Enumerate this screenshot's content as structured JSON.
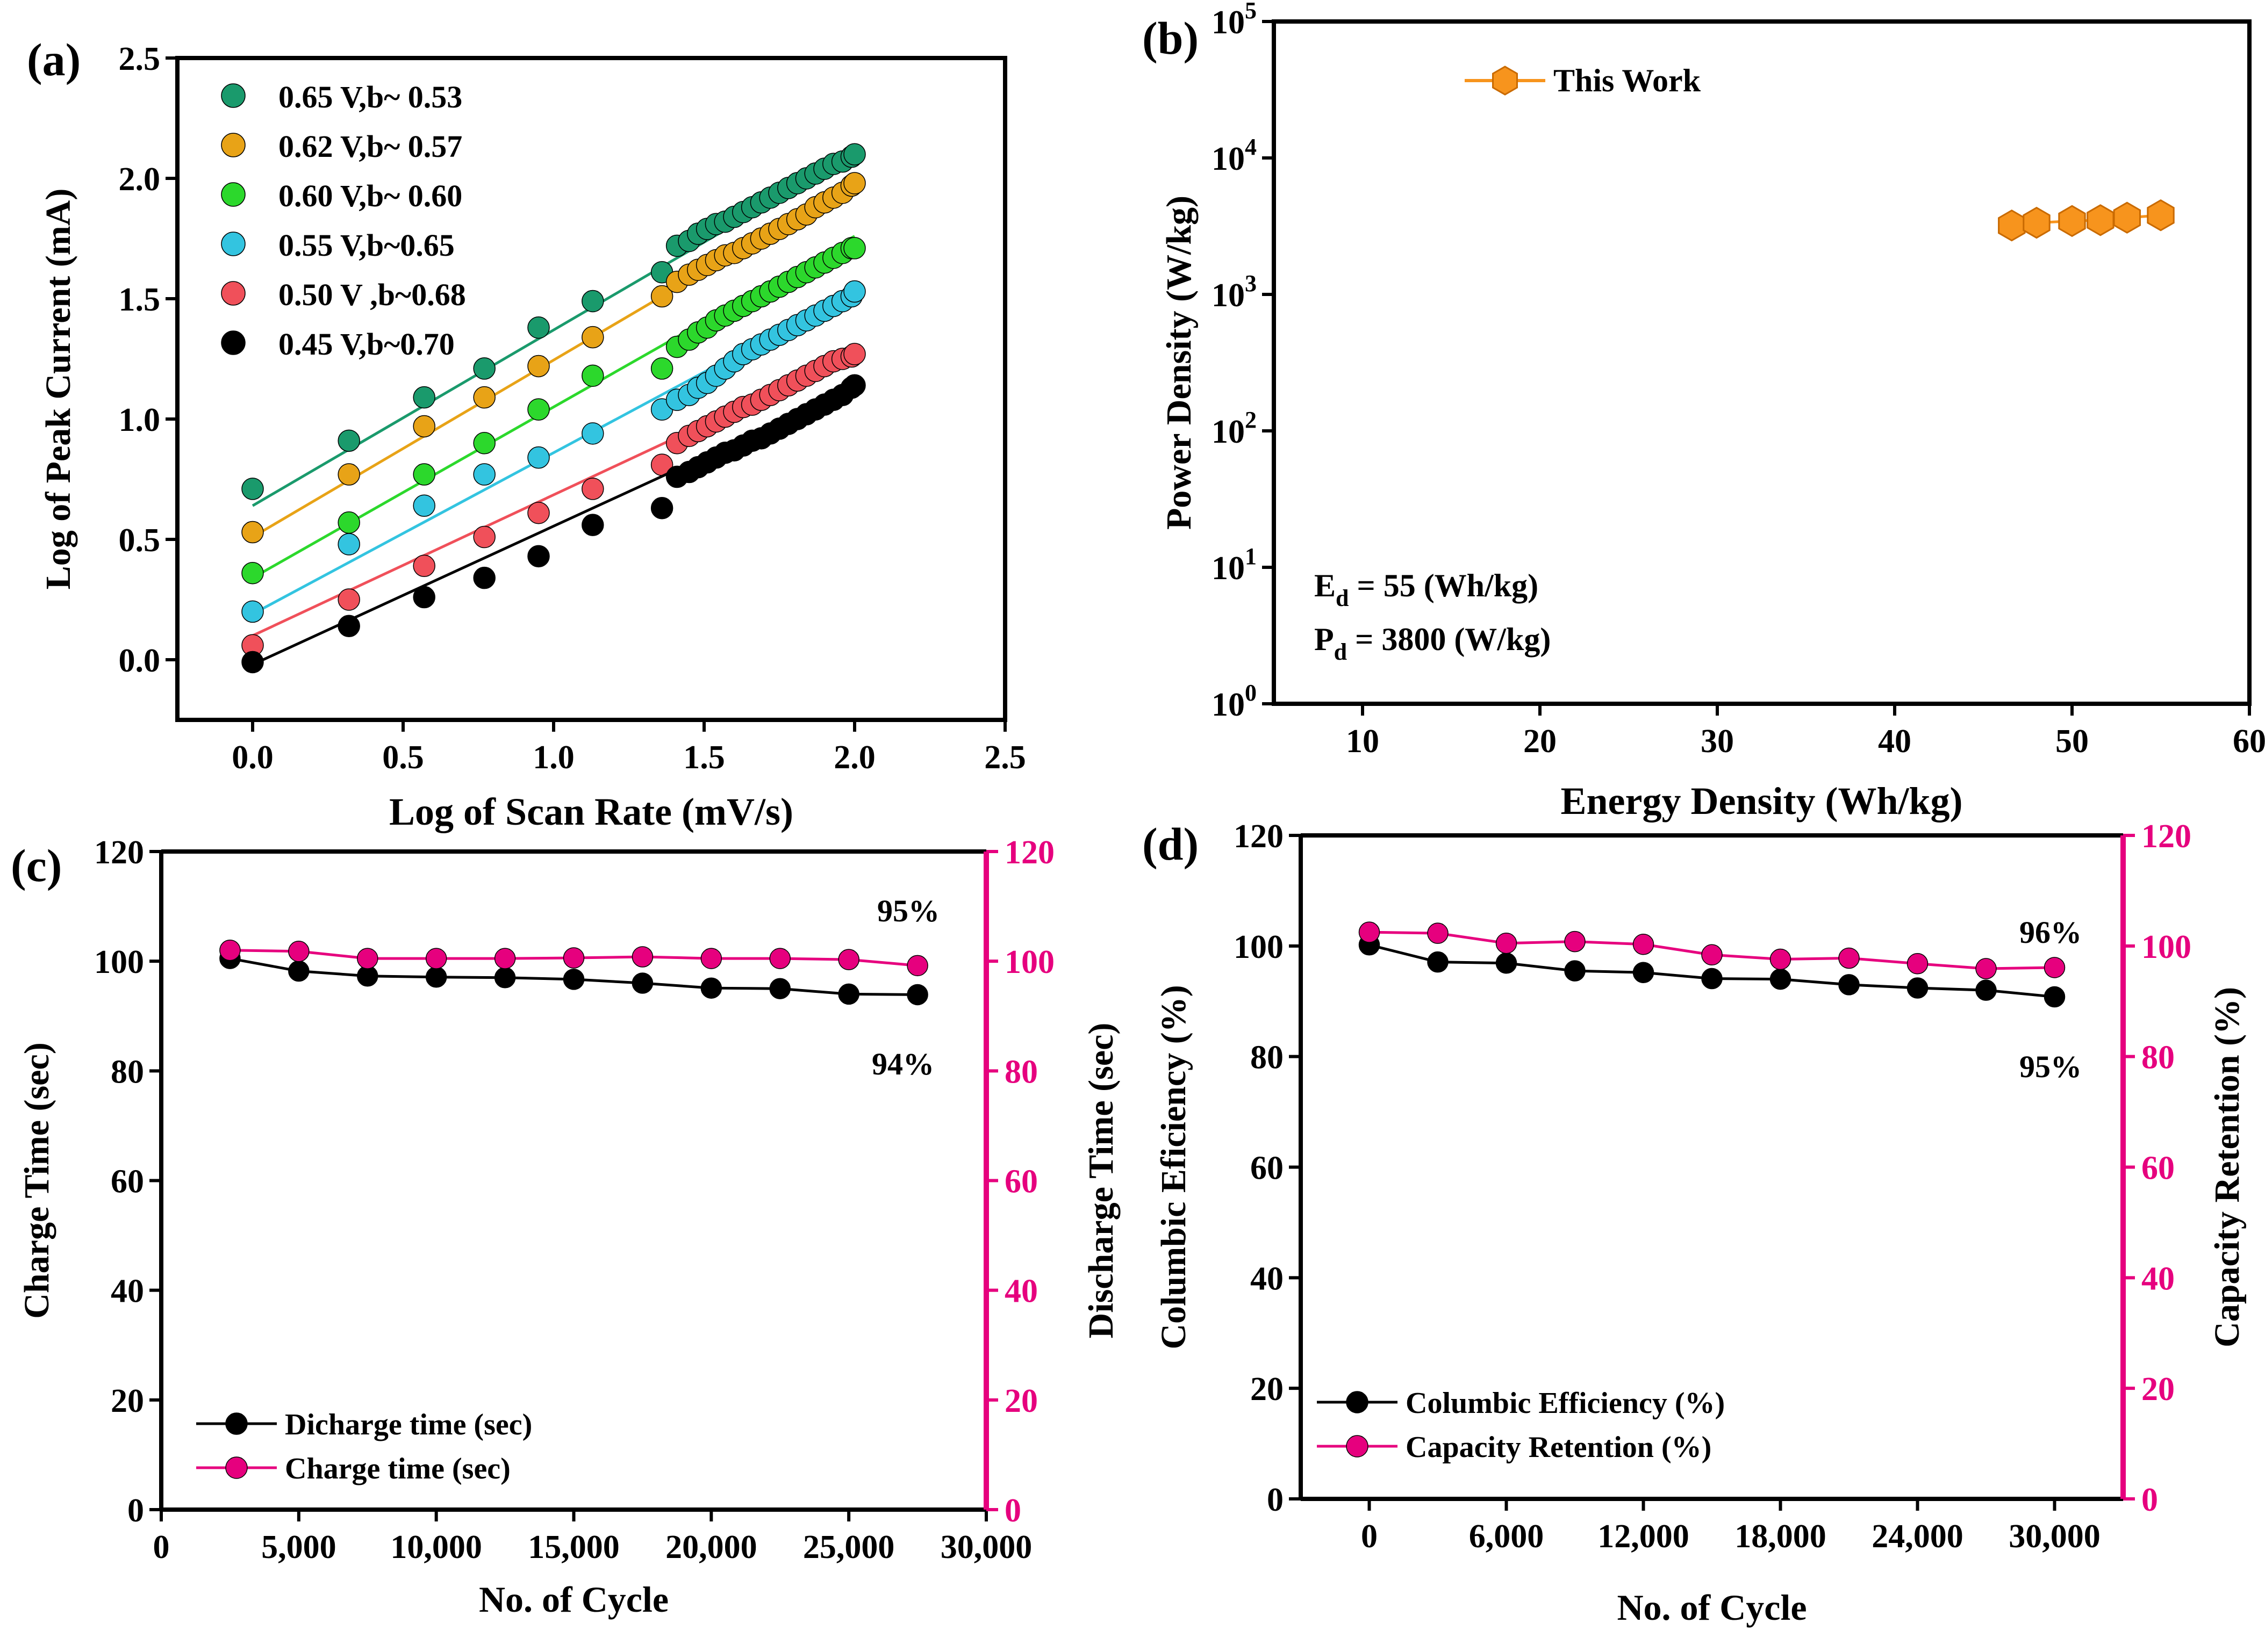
{
  "figure": {
    "colors": {
      "axis": "#000000",
      "pink": "#E6007E",
      "orange": "#F7941D",
      "green_dark": "#1A9A6C",
      "orange_gold": "#E8A317",
      "green": "#2CD82C",
      "cyan": "#33C4E0",
      "red": "#F0505A",
      "black": "#000000"
    }
  },
  "chart_data": [
    {
      "id": "a",
      "panel_label": "(a)",
      "type": "scatter",
      "title": "",
      "xlabel": "Log of Scan Rate (mV/s)",
      "ylabel": "Log of Peak Current (mA)",
      "xlim": [
        -0.25,
        2.5
      ],
      "ylim": [
        -0.25,
        2.5
      ],
      "xticks": [
        0.0,
        0.5,
        1.0,
        1.5,
        2.0,
        2.5
      ],
      "xtick_labels": [
        "0.0",
        "0.5",
        "1.0",
        "1.5",
        "2.0",
        "2.5"
      ],
      "yticks": [
        0.0,
        0.5,
        1.0,
        1.5,
        2.0,
        2.5
      ],
      "ytick_labels": [
        "0.0",
        "0.5",
        "1.0",
        "1.5",
        "2.0",
        "2.5"
      ],
      "legend_position": "top-left",
      "x": [
        0.0,
        0.32,
        0.57,
        0.77,
        0.95,
        1.13,
        1.36,
        1.41,
        1.45,
        1.48,
        1.51,
        1.54,
        1.57,
        1.6,
        1.63,
        1.66,
        1.69,
        1.72,
        1.75,
        1.78,
        1.81,
        1.84,
        1.87,
        1.9,
        1.93,
        1.96,
        1.99,
        2.0
      ],
      "series": [
        {
          "name": "0.65 V,b~ 0.53",
          "color": "#1A9A6C",
          "line": [
            [
              0.0,
              0.64
            ],
            [
              2.0,
              2.1
            ]
          ],
          "values": [
            0.71,
            0.91,
            1.09,
            1.21,
            1.38,
            1.49,
            1.61,
            1.72,
            1.74,
            1.77,
            1.79,
            1.81,
            1.82,
            1.84,
            1.86,
            1.88,
            1.9,
            1.92,
            1.94,
            1.96,
            1.98,
            2.0,
            2.02,
            2.04,
            2.06,
            2.07,
            2.09,
            2.1
          ]
        },
        {
          "name": "0.62 V,b~ 0.57",
          "color": "#E8A317",
          "line": [
            [
              0.0,
              0.51
            ],
            [
              2.0,
              1.98
            ]
          ],
          "values": [
            0.53,
            0.77,
            0.97,
            1.09,
            1.22,
            1.34,
            1.51,
            1.57,
            1.6,
            1.62,
            1.64,
            1.66,
            1.68,
            1.69,
            1.71,
            1.73,
            1.75,
            1.77,
            1.79,
            1.81,
            1.83,
            1.85,
            1.88,
            1.9,
            1.92,
            1.94,
            1.97,
            1.98
          ]
        },
        {
          "name": "0.60 V,b~ 0.60",
          "color": "#2CD82C",
          "line": [
            [
              0.0,
              0.34
            ],
            [
              2.0,
              1.76
            ]
          ],
          "values": [
            0.36,
            0.57,
            0.77,
            0.9,
            1.04,
            1.18,
            1.21,
            1.3,
            1.33,
            1.36,
            1.38,
            1.41,
            1.43,
            1.45,
            1.47,
            1.49,
            1.51,
            1.53,
            1.55,
            1.57,
            1.59,
            1.61,
            1.63,
            1.65,
            1.67,
            1.69,
            1.71,
            1.71
          ]
        },
        {
          "name": "0.55 V,b~0.65",
          "color": "#33C4E0",
          "line": [
            [
              0.0,
              0.19
            ],
            [
              2.0,
              1.53
            ]
          ],
          "values": [
            0.2,
            0.48,
            0.64,
            0.77,
            0.84,
            0.94,
            1.04,
            1.08,
            1.1,
            1.13,
            1.15,
            1.18,
            1.21,
            1.24,
            1.27,
            1.29,
            1.31,
            1.33,
            1.35,
            1.37,
            1.39,
            1.41,
            1.43,
            1.45,
            1.47,
            1.49,
            1.51,
            1.53
          ]
        },
        {
          "name": "0.50 V ,b~0.68",
          "color": "#F0505A",
          "line": [
            [
              0.0,
              0.1
            ],
            [
              2.0,
              1.27
            ]
          ],
          "values": [
            0.06,
            0.25,
            0.39,
            0.51,
            0.61,
            0.71,
            0.81,
            0.9,
            0.93,
            0.95,
            0.97,
            0.99,
            1.01,
            1.03,
            1.05,
            1.06,
            1.08,
            1.1,
            1.12,
            1.14,
            1.16,
            1.18,
            1.2,
            1.22,
            1.24,
            1.25,
            1.26,
            1.27
          ]
        },
        {
          "name": "0.45 V,b~0.70",
          "color": "#000000",
          "line": [
            [
              0.0,
              -0.02
            ],
            [
              2.0,
              1.13
            ]
          ],
          "values": [
            -0.01,
            0.14,
            0.26,
            0.34,
            0.43,
            0.56,
            0.63,
            0.76,
            0.78,
            0.8,
            0.82,
            0.84,
            0.86,
            0.87,
            0.89,
            0.91,
            0.92,
            0.94,
            0.96,
            0.98,
            1.0,
            1.02,
            1.04,
            1.06,
            1.08,
            1.1,
            1.13,
            1.14
          ]
        }
      ]
    },
    {
      "id": "b",
      "panel_label": "(b)",
      "type": "line",
      "title": "",
      "xlabel": "Energy Density (Wh/kg)",
      "ylabel": "Power Density (W/kg)",
      "xlim": [
        5,
        60
      ],
      "ylim": [
        1,
        100000
      ],
      "yscale": "log",
      "xticks": [
        10,
        20,
        30,
        40,
        50,
        60
      ],
      "xtick_labels": [
        "10",
        "20",
        "30",
        "40",
        "50",
        "60"
      ],
      "yticks": [
        1,
        10,
        100,
        1000,
        10000,
        100000
      ],
      "ytick_base": [
        "10",
        "10",
        "10",
        "10",
        "10",
        "10"
      ],
      "ytick_exp": [
        "0",
        "1",
        "2",
        "3",
        "4",
        "5"
      ],
      "legend_position": "top-center",
      "series": [
        {
          "name": "This Work",
          "color": "#F7941D",
          "x": [
            46.6,
            48.0,
            50.0,
            51.6,
            53.1,
            55.0
          ],
          "values": [
            3200,
            3350,
            3450,
            3500,
            3650,
            3800
          ]
        }
      ],
      "annotations": {
        "ed_main": "E",
        "ed_sub": "d",
        "ed_rest": " = 55  (Wh/kg)",
        "pd_main": "P",
        "pd_sub": "d",
        "pd_rest": " = 3800 (W/kg)"
      }
    },
    {
      "id": "c",
      "panel_label": "(c)",
      "type": "line",
      "title": "",
      "xlabel": "No. of Cycle",
      "ylabel": "Charge Time (sec)",
      "ylabel_right": "Discharge Time (sec)",
      "xlim": [
        0,
        30000
      ],
      "ylim": [
        0,
        120
      ],
      "ylim_right": [
        0,
        120
      ],
      "xticks": [
        0,
        5000,
        10000,
        15000,
        20000,
        25000,
        30000
      ],
      "xtick_labels": [
        "0",
        "5,000",
        "10,000",
        "15,000",
        "20,000",
        "25,000",
        "30,000"
      ],
      "yticks": [
        0,
        20,
        40,
        60,
        80,
        100,
        120
      ],
      "ytick_labels": [
        "0",
        "20",
        "40",
        "60",
        "80",
        "100",
        "120"
      ],
      "legend_position": "bottom-left",
      "x": [
        2500,
        5000,
        7500,
        10000,
        12500,
        15000,
        17500,
        20000,
        22500,
        25000,
        27500
      ],
      "series": [
        {
          "name": "Dicharge time (sec)",
          "color": "#000000",
          "axis": "left",
          "values": [
            100.5,
            98.2,
            97.3,
            97.1,
            97.0,
            96.7,
            96.0,
            95.1,
            95.0,
            94.0,
            93.9
          ]
        },
        {
          "name": "Charge time (sec)",
          "color": "#E6007E",
          "axis": "right",
          "values": [
            102.0,
            101.8,
            100.5,
            100.5,
            100.5,
            100.6,
            100.8,
            100.5,
            100.5,
            100.3,
            99.2
          ]
        }
      ],
      "annotations": {
        "top_label": "95%",
        "bottom_label": "94%"
      }
    },
    {
      "id": "d",
      "panel_label": "(d)",
      "type": "line",
      "title": "",
      "xlabel": "No. of Cycle",
      "ylabel": "Columbic Eficiency (%)",
      "ylabel_right": "Capacity Retention (%)",
      "xlim": [
        -3000,
        33000
      ],
      "ylim": [
        0,
        120
      ],
      "ylim_right": [
        0,
        120
      ],
      "xticks": [
        0,
        6000,
        12000,
        18000,
        24000,
        30000
      ],
      "xtick_labels": [
        "0",
        "6,000",
        "12,000",
        "18,000",
        "24,000",
        "30,000"
      ],
      "yticks": [
        0,
        20,
        40,
        60,
        80,
        100,
        120
      ],
      "ytick_labels": [
        "0",
        "20",
        "40",
        "60",
        "80",
        "100",
        "120"
      ],
      "legend_position": "bottom-left",
      "x": [
        0,
        3000,
        6000,
        9000,
        12000,
        15000,
        18000,
        21000,
        24000,
        27000,
        30000
      ],
      "series": [
        {
          "name": "Columbic Efficiency (%)",
          "color": "#000000",
          "axis": "left",
          "values": [
            100.2,
            97.1,
            96.9,
            95.5,
            95.2,
            94.1,
            94.0,
            93.0,
            92.4,
            92.0,
            90.8
          ]
        },
        {
          "name": "Capacity Retention (%)",
          "color": "#E6007E",
          "axis": "right",
          "values": [
            102.5,
            102.3,
            100.5,
            100.8,
            100.3,
            98.4,
            97.6,
            97.8,
            96.8,
            95.9,
            96.1
          ]
        }
      ],
      "annotations": {
        "top_label": "96%",
        "bottom_label": "95%"
      }
    }
  ]
}
